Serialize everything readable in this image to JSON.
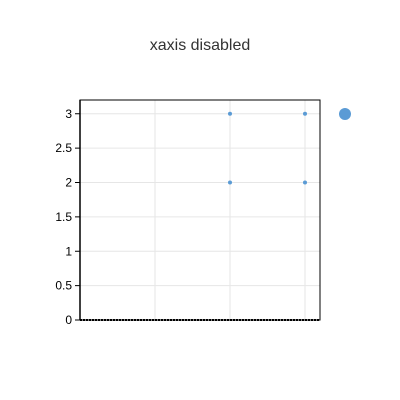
{
  "chart_data": {
    "type": "scatter",
    "title": "xaxis disabled",
    "xlabel": "",
    "ylabel": "",
    "xaxis_labels_visible": false,
    "grid": true,
    "ylim": [
      0,
      3.2
    ],
    "xlim": [
      0,
      3.2
    ],
    "yticks": [
      "0",
      "0.5",
      "1",
      "1.5",
      "2",
      "2.5",
      "3"
    ],
    "xticks": [
      0,
      1,
      2,
      3
    ],
    "series": [
      {
        "color": "#5b9bd5",
        "points": [
          {
            "x": 2,
            "y": 3
          },
          {
            "x": 3,
            "y": 3
          },
          {
            "x": 2,
            "y": 2
          },
          {
            "x": 3,
            "y": 2
          }
        ]
      }
    ],
    "legend_placement": "right"
  }
}
